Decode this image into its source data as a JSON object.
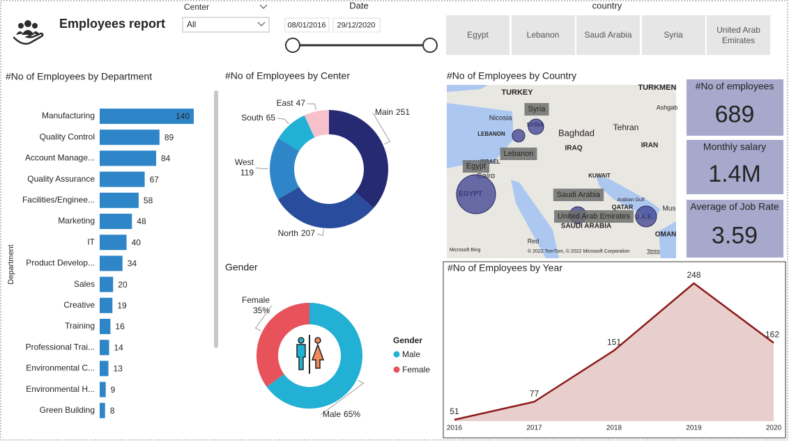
{
  "header": {
    "title": "Employees report"
  },
  "filters": {
    "center": {
      "label": "Center",
      "selected": "All"
    },
    "date": {
      "label": "Date",
      "start": "08/01/2016",
      "end": "29/12/2020"
    },
    "country": {
      "label": "country",
      "options": [
        "Egypt",
        "Lebanon",
        "Saudi Arabia",
        "Syria",
        "United Arab Emirates"
      ]
    }
  },
  "cards": [
    {
      "title": "#No of employees",
      "value": 689
    },
    {
      "title": "Monthly salary",
      "value": 1400000,
      "value_label": "1.4M"
    },
    {
      "title": "Average of Job Rate",
      "value": 3.59
    }
  ],
  "chart_data": [
    {
      "type": "bar",
      "orientation": "horizontal",
      "title": "#No of Employees by Department",
      "y_label": "Department",
      "categories": [
        "Manufacturing",
        "Quality Control",
        "Account Manage...",
        "Quality Assurance",
        "Facilities/Enginee...",
        "Marketing",
        "IT",
        "Product Develop...",
        "Sales",
        "Creative",
        "Training",
        "Professional Trai...",
        "Environmental C...",
        "Environmental H...",
        "Green Building"
      ],
      "values": [
        140,
        89,
        84,
        67,
        58,
        48,
        40,
        34,
        20,
        19,
        16,
        14,
        13,
        9,
        8
      ],
      "color": "#2e86c8"
    },
    {
      "type": "donut",
      "title": "#No of Employees by Center",
      "categories": [
        "Main",
        "North",
        "West",
        "South",
        "East"
      ],
      "values": [
        251,
        207,
        119,
        65,
        47
      ],
      "colors": [
        "#252a72",
        "#2a4c9c",
        "#2e86c8",
        "#22b0d4",
        "#f7c1cc"
      ]
    },
    {
      "type": "donut",
      "title": "Gender",
      "legend_title": "Gender",
      "categories": [
        "Male",
        "Female"
      ],
      "values": [
        65,
        35
      ],
      "value_labels": [
        "65%",
        "35%"
      ],
      "colors": [
        "#22b0d4",
        "#e8525a"
      ]
    },
    {
      "type": "map",
      "title": "#No of Employees by Country",
      "categories": [
        "Egypt",
        "Syria",
        "Lebanon",
        "Saudi Arabia",
        "United Arab Emirates"
      ],
      "values": [
        399,
        62,
        41,
        73,
        114
      ],
      "color": "#3a3f8f",
      "place_labels": [
        "TURKEY",
        "TURKMEN",
        "Ashgab",
        "Nicosia",
        "SYRIA",
        "LEBANON",
        "Baghdad",
        "Tehran",
        "IRAQ",
        "IRAN",
        "ISRAEL",
        "Cairo",
        "EGYPT",
        "KUWAIT",
        "Arabian Gulf",
        "QATAR",
        "U.A.E.",
        "SAUDI ARABIA",
        "OMAN",
        "Mus",
        "Red"
      ],
      "provider": "Microsoft Bing",
      "attribution": "© 2022 TomTom, © 2022 Microsoft Corporation",
      "terms": "Terms"
    },
    {
      "type": "area",
      "title": "#No of Employees by Year",
      "x": [
        2016,
        2017,
        2018,
        2019,
        2020
      ],
      "values": [
        51,
        77,
        151,
        248,
        162
      ],
      "color": "#8b1a1a",
      "fill": "#e8cfcd"
    }
  ]
}
